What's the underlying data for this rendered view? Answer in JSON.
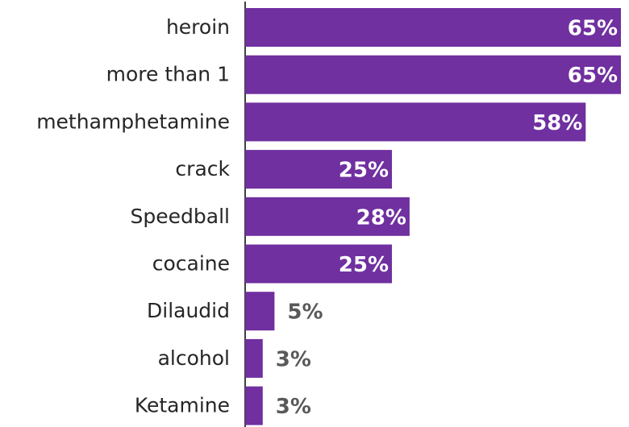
{
  "chart_data": {
    "type": "bar",
    "orientation": "horizontal",
    "categories": [
      "heroin",
      "more than 1",
      "methamphetamine",
      "crack",
      "Speedball",
      "cocaine",
      "Dilaudid",
      "alcohol",
      "Ketamine"
    ],
    "values": [
      65,
      65,
      58,
      25,
      28,
      25,
      5,
      3,
      3
    ],
    "value_labels": [
      "65%",
      "65%",
      "58%",
      "25%",
      "28%",
      "25%",
      "5%",
      "3%",
      "3%"
    ],
    "unit": "%",
    "xlim": [
      0,
      64
    ],
    "grid": false,
    "legend": "none",
    "title": "",
    "xlabel": "",
    "ylabel": ""
  },
  "colors": {
    "bar": "#7030a0",
    "label_inside": "#ffffff",
    "label_outside": "#595959",
    "category_text": "#262626",
    "axis_line": "#000000"
  }
}
